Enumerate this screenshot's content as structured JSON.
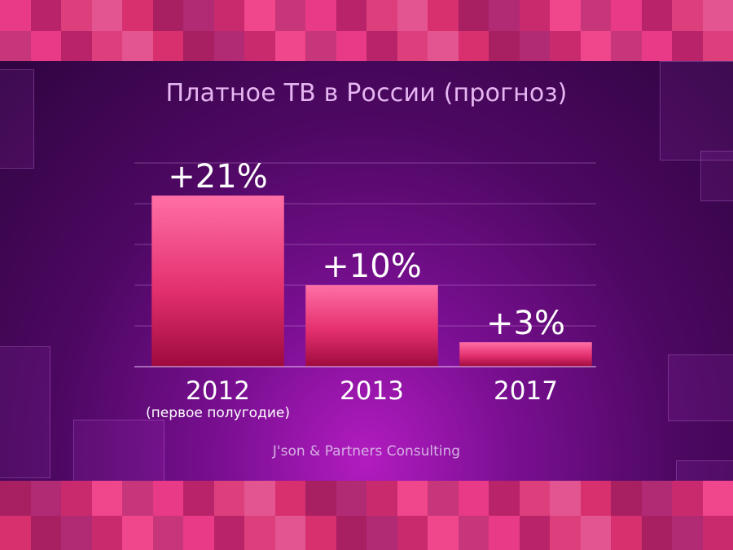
{
  "chart_data": {
    "type": "bar",
    "title": "Платное ТВ в России (прогноз)",
    "categories": [
      "2012",
      "2013",
      "2017"
    ],
    "category_notes": [
      "(первое полугодие)",
      "",
      ""
    ],
    "values": [
      21,
      10,
      3
    ],
    "value_labels": [
      "+21%",
      "+10%",
      "+3%"
    ],
    "ylim": [
      0,
      25
    ],
    "grid": true,
    "source": "J'son & Partners Consulting"
  }
}
